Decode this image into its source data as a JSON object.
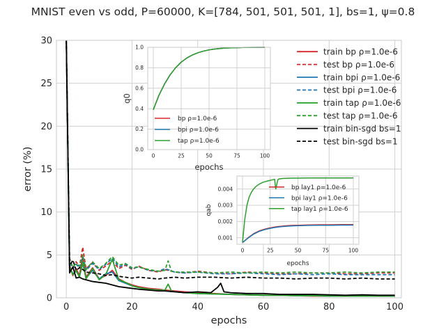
{
  "chart_data": [
    {
      "type": "line",
      "title": "MNIST even vs odd, P=60000, K=[784, 501, 501, 501, 1], bs=1, ψ=0.8",
      "xlabel": "epochs",
      "ylabel": "error (%)",
      "xlim": [
        -3,
        102
      ],
      "ylim": [
        0,
        30
      ],
      "xticks": [
        0,
        20,
        40,
        60,
        80,
        100
      ],
      "yticks": [
        0,
        5,
        10,
        15,
        20,
        25,
        30
      ],
      "grid": true,
      "legend_position": "top-right",
      "series": [
        {
          "name": "train bp ρ=1.0e-6",
          "color": "#d62728",
          "dash": "solid",
          "x": [
            0,
            1,
            2,
            3,
            4,
            5,
            6,
            8,
            10,
            12,
            14,
            16,
            18,
            20,
            22,
            25,
            28,
            30,
            33,
            36,
            40,
            45,
            50,
            55,
            60,
            65,
            70,
            75,
            80,
            85,
            90,
            95,
            100
          ],
          "y": [
            30,
            3.8,
            2.6,
            3.4,
            2.6,
            4.8,
            2.4,
            3.5,
            2.2,
            2.6,
            3.2,
            2.2,
            1.8,
            1.5,
            1.3,
            1.1,
            1.0,
            0.9,
            0.8,
            0.7,
            0.6,
            0.5,
            0.4,
            0.35,
            0.3,
            0.3,
            0.25,
            0.2,
            0.2,
            0.2,
            0.2,
            0.2,
            0.2
          ]
        },
        {
          "name": "test bp ρ=1.0e-6",
          "color": "#d62728",
          "dash": "dashed",
          "x": [
            0,
            1,
            2,
            3,
            4,
            5,
            6,
            8,
            10,
            12,
            14,
            16,
            18,
            20,
            22,
            25,
            28,
            30,
            33,
            36,
            40,
            45,
            50,
            55,
            60,
            65,
            70,
            75,
            80,
            85,
            90,
            95,
            100
          ],
          "y": [
            30,
            4.6,
            3.5,
            4.2,
            3.6,
            5.9,
            3.4,
            4.1,
            3.2,
            3.7,
            4.3,
            3.4,
            3.8,
            3.3,
            3.7,
            3.2,
            3.0,
            3.3,
            3.0,
            2.9,
            3.1,
            2.9,
            2.8,
            3.0,
            2.9,
            2.8,
            2.8,
            2.9,
            2.9,
            2.8,
            2.8,
            2.9,
            2.9
          ]
        },
        {
          "name": "train bpi ρ=1.0e-6",
          "color": "#1f77b4",
          "dash": "solid",
          "x": [
            0,
            1,
            2,
            3,
            4,
            5,
            6,
            8,
            10,
            12,
            14,
            16,
            18,
            20,
            22,
            25,
            28,
            30,
            33,
            36,
            40,
            45,
            50,
            55,
            60,
            65,
            70,
            75,
            80,
            85,
            90,
            95,
            100
          ],
          "y": [
            30,
            3.5,
            2.8,
            3.1,
            2.5,
            4.0,
            2.3,
            3.2,
            2.2,
            2.8,
            3.0,
            2.0,
            1.7,
            1.4,
            1.2,
            1.0,
            0.9,
            0.8,
            0.7,
            0.6,
            0.5,
            0.45,
            0.4,
            0.35,
            0.3,
            0.3,
            0.25,
            0.25,
            0.2,
            0.2,
            0.2,
            0.2,
            0.2
          ]
        },
        {
          "name": "test bpi ρ=1.0e-6",
          "color": "#1f77b4",
          "dash": "dashed",
          "x": [
            0,
            1,
            2,
            3,
            4,
            5,
            6,
            8,
            10,
            12,
            14,
            16,
            18,
            20,
            22,
            25,
            28,
            30,
            33,
            36,
            40,
            45,
            50,
            55,
            60,
            65,
            70,
            75,
            80,
            85,
            90,
            95,
            100
          ],
          "y": [
            30,
            4.2,
            3.4,
            3.9,
            3.5,
            4.8,
            3.2,
            4.0,
            3.3,
            3.9,
            4.6,
            3.6,
            3.9,
            3.4,
            3.6,
            3.2,
            3.1,
            3.4,
            3.0,
            2.9,
            3.0,
            2.8,
            2.8,
            2.9,
            2.8,
            2.7,
            2.8,
            2.7,
            2.8,
            2.7,
            2.7,
            2.7,
            2.7
          ]
        },
        {
          "name": "train tap ρ=1.0e-6",
          "color": "#2ca02c",
          "dash": "solid",
          "x": [
            0,
            1,
            2,
            3,
            4,
            5,
            6,
            8,
            10,
            12,
            14,
            16,
            18,
            20,
            22,
            25,
            28,
            30,
            31,
            32,
            33,
            36,
            40,
            45,
            50,
            55,
            60,
            65,
            70,
            75,
            80,
            85,
            90,
            95,
            100
          ],
          "y": [
            30,
            3.6,
            2.7,
            3.2,
            2.4,
            4.2,
            2.2,
            3.4,
            2.1,
            2.7,
            4.5,
            2.1,
            1.8,
            1.4,
            1.2,
            1.0,
            0.9,
            0.9,
            1.6,
            0.8,
            0.7,
            0.6,
            0.5,
            0.45,
            0.4,
            0.35,
            0.3,
            0.3,
            0.25,
            0.25,
            0.2,
            0.2,
            0.2,
            0.2,
            0.2
          ]
        },
        {
          "name": "test tap ρ=1.0e-6",
          "color": "#2ca02c",
          "dash": "dashed",
          "x": [
            0,
            1,
            2,
            3,
            4,
            5,
            6,
            8,
            10,
            12,
            14,
            16,
            18,
            20,
            22,
            25,
            28,
            30,
            31,
            32,
            33,
            36,
            40,
            45,
            50,
            55,
            60,
            65,
            70,
            75,
            80,
            85,
            90,
            95,
            100
          ],
          "y": [
            30,
            4.4,
            3.6,
            4.0,
            3.7,
            5.0,
            3.3,
            4.2,
            3.4,
            4.0,
            4.8,
            3.8,
            4.0,
            3.5,
            3.6,
            3.3,
            3.1,
            3.2,
            4.3,
            3.1,
            3.0,
            3.0,
            3.0,
            2.9,
            3.0,
            2.9,
            3.0,
            2.9,
            3.0,
            2.9,
            2.9,
            3.0,
            2.9,
            3.0,
            3.0
          ]
        },
        {
          "name": "train bin-sgd bs=1",
          "color": "#000000",
          "dash": "solid",
          "x": [
            0,
            1,
            2,
            3,
            4,
            5,
            6,
            8,
            10,
            12,
            14,
            16,
            18,
            20,
            22,
            25,
            28,
            30,
            33,
            36,
            40,
            44,
            46,
            47,
            48,
            50,
            55,
            60,
            65,
            70,
            75,
            80,
            85,
            90,
            95,
            100
          ],
          "y": [
            30,
            2.9,
            3.6,
            2.3,
            2.4,
            2.2,
            2.1,
            1.9,
            1.8,
            1.7,
            1.5,
            1.3,
            1.2,
            1.1,
            1.0,
            0.9,
            0.8,
            0.8,
            0.7,
            0.6,
            0.7,
            0.6,
            1.2,
            1.7,
            0.7,
            0.6,
            0.5,
            0.5,
            0.4,
            0.4,
            0.4,
            0.35,
            0.3,
            0.35,
            0.3,
            0.3
          ]
        },
        {
          "name": "test bin-sgd bs=1",
          "color": "#000000",
          "dash": "dashed",
          "x": [
            0,
            1,
            2,
            3,
            4,
            5,
            6,
            8,
            10,
            12,
            14,
            16,
            18,
            20,
            22,
            25,
            28,
            30,
            33,
            36,
            40,
            45,
            50,
            55,
            60,
            65,
            70,
            75,
            80,
            85,
            90,
            95,
            100
          ],
          "y": [
            30,
            3.7,
            4.4,
            3.2,
            3.5,
            3.3,
            3.0,
            2.9,
            2.8,
            2.6,
            2.7,
            2.5,
            2.4,
            2.3,
            2.4,
            2.3,
            2.2,
            2.3,
            2.4,
            2.3,
            2.4,
            2.4,
            2.3,
            2.4,
            2.3,
            2.3,
            2.2,
            2.3,
            2.3,
            2.2,
            2.3,
            2.2,
            2.2
          ]
        }
      ]
    },
    {
      "type": "line",
      "xlabel": "epochs",
      "ylabel": "q0",
      "xlim": [
        -5,
        105
      ],
      "ylim": [
        0.0,
        1.0
      ],
      "xticks": [
        0,
        25,
        50,
        75,
        100
      ],
      "yticks": [
        0.0,
        0.2,
        0.4,
        0.6,
        0.8,
        1.0
      ],
      "ytick_labels": [
        "0.0",
        "0.2",
        "0.4",
        "0.6",
        "0.8",
        "1.0"
      ],
      "grid": true,
      "legend_position": "lower-left",
      "series": [
        {
          "name": "bp ρ=1.0e-6",
          "color": "#d62728",
          "x": [
            0,
            5,
            10,
            15,
            20,
            25,
            30,
            35,
            40,
            45,
            50,
            55,
            60,
            65,
            70,
            75,
            80,
            90,
            100
          ],
          "y": [
            0.39,
            0.53,
            0.64,
            0.73,
            0.8,
            0.855,
            0.895,
            0.925,
            0.947,
            0.963,
            0.975,
            0.983,
            0.989,
            0.993,
            0.995,
            0.997,
            0.998,
            0.999,
            1.0
          ]
        },
        {
          "name": "bpi ρ=1.0e-6",
          "color": "#1f77b4",
          "x": [
            0,
            5,
            10,
            15,
            20,
            25,
            30,
            35,
            40,
            45,
            50,
            55,
            60,
            65,
            70,
            75,
            80,
            90,
            100
          ],
          "y": [
            0.39,
            0.53,
            0.64,
            0.73,
            0.8,
            0.855,
            0.895,
            0.925,
            0.947,
            0.963,
            0.975,
            0.983,
            0.989,
            0.993,
            0.995,
            0.997,
            0.998,
            0.999,
            1.0
          ]
        },
        {
          "name": "tap ρ=1.0e-6",
          "color": "#2ca02c",
          "x": [
            0,
            5,
            10,
            15,
            20,
            25,
            30,
            35,
            40,
            45,
            50,
            55,
            60,
            65,
            70,
            75,
            80,
            90,
            100
          ],
          "y": [
            0.39,
            0.53,
            0.64,
            0.73,
            0.8,
            0.855,
            0.895,
            0.925,
            0.947,
            0.963,
            0.975,
            0.983,
            0.989,
            0.993,
            0.995,
            0.997,
            0.998,
            0.999,
            1.0
          ]
        }
      ]
    },
    {
      "type": "line",
      "xlabel": "epochs",
      "ylabel": "qab",
      "xlim": [
        -5,
        105
      ],
      "ylim": [
        0.0006,
        0.0048
      ],
      "xticks": [
        0,
        25,
        50,
        75,
        100
      ],
      "yticks": [
        0.001,
        0.002,
        0.003,
        0.004
      ],
      "ytick_labels": [
        "0.001",
        "0.002",
        "0.003",
        "0.004"
      ],
      "grid": true,
      "legend_position": "top-right",
      "series": [
        {
          "name": "bp lay1 ρ=1.0e-6",
          "color": "#d62728",
          "x": [
            0,
            5,
            10,
            15,
            20,
            25,
            30,
            35,
            40,
            45,
            50,
            60,
            70,
            80,
            90,
            100
          ],
          "y": [
            0.0007,
            0.001,
            0.00125,
            0.00142,
            0.00153,
            0.00161,
            0.00167,
            0.00171,
            0.00174,
            0.00176,
            0.00177,
            0.00179,
            0.0018,
            0.0018,
            0.00181,
            0.00181
          ]
        },
        {
          "name": "bpi lay1 ρ=1.0e-6",
          "color": "#1f77b4",
          "x": [
            0,
            5,
            10,
            15,
            20,
            25,
            30,
            35,
            40,
            45,
            50,
            60,
            70,
            80,
            90,
            100
          ],
          "y": [
            0.0007,
            0.00098,
            0.00122,
            0.00139,
            0.0015,
            0.00158,
            0.00164,
            0.00168,
            0.00171,
            0.00173,
            0.00174,
            0.00176,
            0.00177,
            0.00177,
            0.00178,
            0.00178
          ]
        },
        {
          "name": "tap lay1 ρ=1.0e-6",
          "color": "#2ca02c",
          "x": [
            0,
            2,
            4,
            6,
            8,
            10,
            12,
            15,
            18,
            20,
            23,
            26,
            29,
            30,
            31,
            32,
            33,
            36,
            40,
            45,
            50,
            60,
            70,
            80,
            90,
            100
          ],
          "y": [
            0.0007,
            0.0021,
            0.003,
            0.0035,
            0.0038,
            0.004,
            0.00415,
            0.0043,
            0.0044,
            0.00445,
            0.0045,
            0.00455,
            0.0046,
            0.004,
            0.0043,
            0.00458,
            0.00462,
            0.00465,
            0.00466,
            0.00467,
            0.00467,
            0.00468,
            0.00468,
            0.00468,
            0.00468,
            0.00468
          ]
        }
      ]
    }
  ]
}
